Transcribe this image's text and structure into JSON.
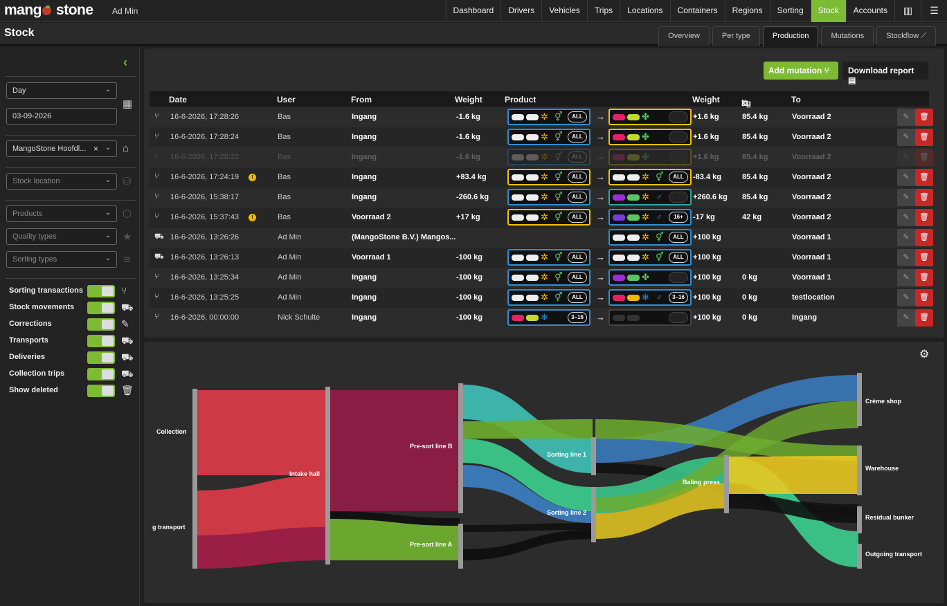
{
  "brand": {
    "name_a": "mang",
    "name_b": "stone",
    "user": "Ad Min"
  },
  "nav": [
    "Dashboard",
    "Drivers",
    "Vehicles",
    "Trips",
    "Locations",
    "Containers",
    "Regions",
    "Sorting",
    "Stock",
    "Accounts"
  ],
  "nav_active": "Stock",
  "page_title": "Stock",
  "subtabs": [
    "Overview",
    "Per type",
    "Production",
    "Mutations",
    "Stockflow"
  ],
  "subtab_active": "Production",
  "filters": {
    "period": "Day",
    "date": "03-09-2026",
    "location": "MangoStone Hoofdl...",
    "stock_location_ph": "Stock location",
    "products_ph": "Products",
    "quality_ph": "Quality types",
    "sorting_ph": "Sorting types"
  },
  "toggles": [
    "Sorting transactions",
    "Stock movements",
    "Corrections",
    "Transports",
    "Deliveries",
    "Collection trips",
    "Show deleted"
  ],
  "buttons": {
    "add": "Add mutation",
    "download": "Download report"
  },
  "table": {
    "headers": {
      "date": "Date",
      "user": "User",
      "from": "From",
      "weight": "Weight",
      "product": "Product",
      "weight2": "Weight",
      "kg": "kg",
      "to": "To"
    },
    "rows": [
      {
        "date": "16-6-2026, 17:28:26",
        "user": "Bas",
        "from": "Ingang",
        "weight": "-1.6 kg",
        "weight2": "+1.6 kg",
        "kg": "85.4 kg",
        "to": "Voorraad 2"
      },
      {
        "date": "16-6-2026, 17:28:24",
        "user": "Bas",
        "from": "Ingang",
        "weight": "-1.6 kg",
        "weight2": "+1.6 kg",
        "kg": "85.4 kg",
        "to": "Voorraad 2"
      },
      {
        "date": "16-6-2026, 17:28:22",
        "user": "Bas",
        "from": "Ingang",
        "weight": "-1.6 kg",
        "weight2": "+1.6 kg",
        "kg": "85.4 kg",
        "to": "Voorraad 2"
      },
      {
        "date": "16-6-2026, 17:24:19",
        "user": "Bas",
        "from": "Ingang",
        "weight": "+83.4 kg",
        "weight2": "-83.4 kg",
        "kg": "85.4 kg",
        "to": "Voorraad 2"
      },
      {
        "date": "16-6-2026, 15:38:17",
        "user": "Bas",
        "from": "Ingang",
        "weight": "-260.6 kg",
        "weight2": "+260.6 kg",
        "kg": "85.4 kg",
        "to": "Voorraad 2"
      },
      {
        "date": "16-6-2026, 15:37:43",
        "user": "Bas",
        "from": "Voorraad 2",
        "weight": "+17 kg",
        "weight2": "-17 kg",
        "kg": "42 kg",
        "to": "Voorraad 2"
      },
      {
        "date": "16-6-2026, 13:26:26",
        "user": "Ad Min",
        "from": "(MangoStone B.V.) Mangos...",
        "weight": "",
        "weight2": "+100 kg",
        "kg": "",
        "to": "Voorraad 1"
      },
      {
        "date": "16-6-2026, 13:26:13",
        "user": "Ad Min",
        "from": "Voorraad 1",
        "weight": "-100 kg",
        "weight2": "+100 kg",
        "kg": "",
        "to": "Voorraad 1"
      },
      {
        "date": "16-6-2026, 13:25:34",
        "user": "Ad Min",
        "from": "Ingang",
        "weight": "-100 kg",
        "weight2": "+100 kg",
        "kg": "0 kg",
        "to": "Voorraad 1"
      },
      {
        "date": "16-6-2026, 13:25:25",
        "user": "Ad Min",
        "from": "Ingang",
        "weight": "-100 kg",
        "weight2": "+100 kg",
        "kg": "0 kg",
        "to": "testlocation"
      },
      {
        "date": "16-6-2026, 00:00:00",
        "user": "Nick Schulte",
        "from": "Ingang",
        "weight": "-100 kg",
        "weight2": "+100 kg",
        "kg": "0 kg",
        "to": "Ingang"
      }
    ],
    "badges": {
      "all": "ALL",
      "b16": "16+",
      "b316": "3–16"
    }
  },
  "sankey_nodes": {
    "collection": "Collection",
    "transport": "g transport",
    "intake": "Intake hall",
    "presortb": "Pre-sort line B",
    "presorta": "Pre-sort line A",
    "sort1": "Sorting line 1",
    "sort2": "Sorting line 2",
    "baling": "Baling press",
    "creme": "Crème shop",
    "warehouse": "Warehouse",
    "residual": "Residual bunker",
    "outgoing": "Outgoing transport"
  },
  "colors": {
    "accent": "#7dbb33",
    "danger": "#c62828",
    "red": "#d63a47",
    "maroon": "#8e1c45",
    "green": "#6fad2e",
    "teal": "#3fc2b8",
    "mint": "#3ccf8e",
    "blue": "#3b7fc4",
    "yellow": "#e8c820"
  }
}
